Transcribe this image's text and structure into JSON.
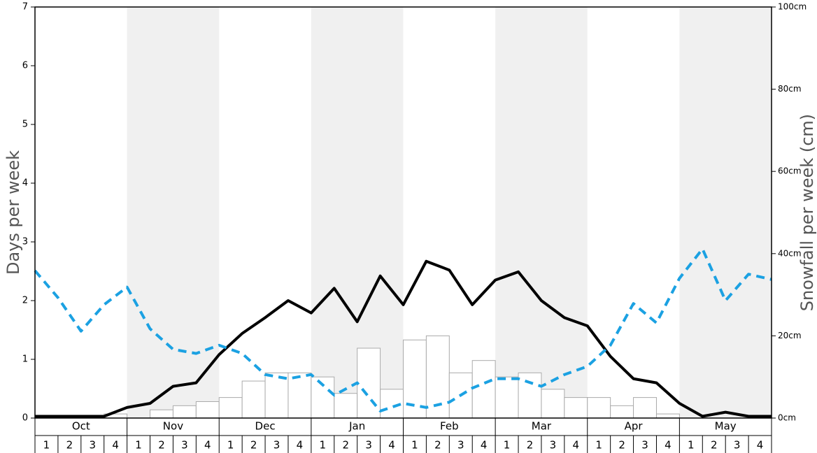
{
  "chart_data": {
    "type": "bar-line",
    "y_label": "Days per week",
    "y2_label": "Snowfall per week (cm)",
    "months": [
      "Oct",
      "Nov",
      "Dec",
      "Jan",
      "Feb",
      "Mar",
      "Apr",
      "May"
    ],
    "categories": [
      "1",
      "2",
      "3",
      "4",
      "1",
      "2",
      "3",
      "4",
      "1",
      "2",
      "3",
      "4",
      "1",
      "2",
      "3",
      "4",
      "1",
      "2",
      "3",
      "4",
      "1",
      "2",
      "3",
      "4",
      "1",
      "2",
      "3",
      "4",
      "1",
      "2",
      "3",
      "4"
    ],
    "x": [
      0,
      1,
      2,
      3,
      4,
      5,
      6,
      7,
      8,
      9,
      10,
      11,
      12,
      13,
      14,
      15,
      16,
      17,
      18,
      19,
      20,
      21,
      22,
      23,
      24,
      25,
      26,
      27,
      28,
      29,
      30,
      31,
      32
    ],
    "xlim": [
      0,
      32
    ],
    "ylim": [
      0,
      7
    ],
    "yticks": [
      0,
      1,
      2,
      3,
      4,
      5,
      6,
      7
    ],
    "y2lim": [
      0,
      100
    ],
    "y2ticks": [
      {
        "value": 0,
        "label": "0cm"
      },
      {
        "value": 20,
        "label": "20cm"
      },
      {
        "value": 40,
        "label": "40cm"
      },
      {
        "value": 60,
        "label": "60cm"
      },
      {
        "value": 80,
        "label": "80cm"
      },
      {
        "value": 100,
        "label": "100cm"
      }
    ],
    "series": [
      {
        "type": "bar",
        "axis": "y2",
        "color": "#ffffff",
        "stroke": "#aaaaaa",
        "values": [
          0,
          0,
          0,
          1,
          0,
          2,
          3,
          4,
          5,
          9,
          11,
          11,
          10,
          6,
          17,
          7,
          19,
          20,
          11,
          14,
          10,
          11,
          7,
          5,
          5,
          3,
          5,
          1,
          0,
          0,
          0,
          0
        ]
      },
      {
        "type": "line",
        "color": "#000000",
        "style": "solid",
        "values": [
          0.03,
          0.03,
          0.03,
          0.03,
          0.18,
          0.25,
          0.54,
          0.6,
          1.08,
          1.44,
          1.71,
          2.0,
          1.79,
          2.21,
          1.64,
          2.42,
          1.93,
          2.67,
          2.52,
          1.93,
          2.35,
          2.49,
          2.0,
          1.71,
          1.57,
          1.05,
          0.67,
          0.6,
          0.25,
          0.03,
          0.1,
          0.03,
          0.03
        ]
      },
      {
        "type": "line",
        "color": "#1ba1e2",
        "style": "dashed",
        "values": [
          2.51,
          2.05,
          1.48,
          1.93,
          2.23,
          1.52,
          1.17,
          1.1,
          1.24,
          1.1,
          0.74,
          0.67,
          0.74,
          0.39,
          0.6,
          0.12,
          0.25,
          0.18,
          0.27,
          0.51,
          0.67,
          0.67,
          0.54,
          0.74,
          0.88,
          1.24,
          1.95,
          1.62,
          2.38,
          2.88,
          2.0,
          2.45,
          2.36
        ]
      }
    ]
  }
}
